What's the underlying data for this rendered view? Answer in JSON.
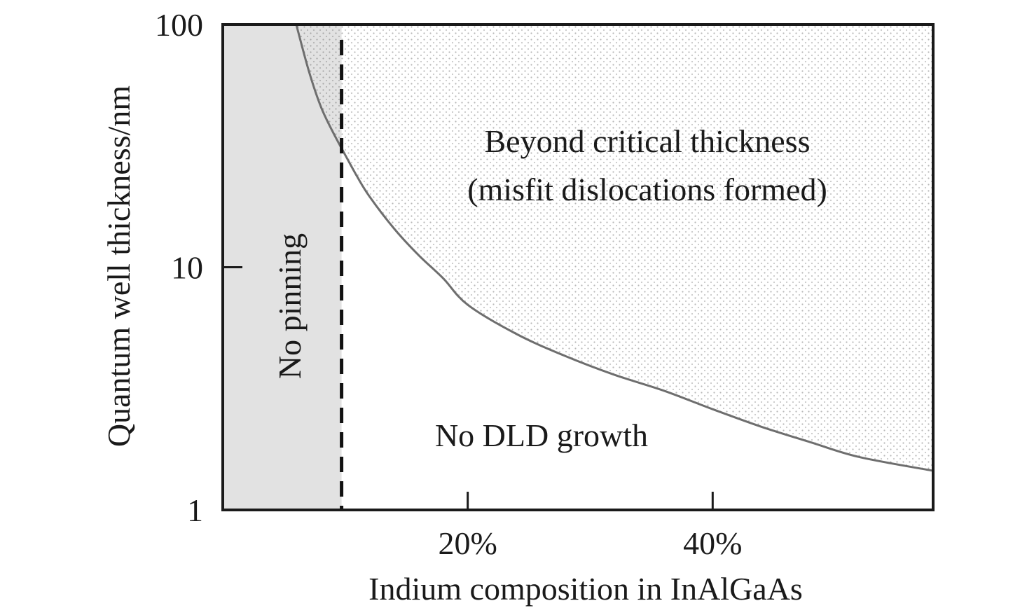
{
  "chart_data": {
    "type": "area",
    "title": "",
    "xlabel": "Indium composition in InAlGaAs",
    "ylabel": "Quantum well thickness/nm",
    "x_unit": "fraction",
    "xlim": [
      0,
      0.58
    ],
    "ylim": [
      1,
      100
    ],
    "y_scale": "log",
    "x_ticks": [
      {
        "value": 0.2,
        "label": "20%"
      },
      {
        "value": 0.4,
        "label": "40%"
      }
    ],
    "y_ticks": [
      {
        "value": 1,
        "label": "1"
      },
      {
        "value": 10,
        "label": "10"
      },
      {
        "value": 100,
        "label": "100"
      }
    ],
    "grid": false,
    "series": [
      {
        "x": [
          0.06,
          0.07,
          0.08,
          0.09,
          0.1,
          0.11,
          0.12,
          0.14,
          0.16,
          0.18,
          0.2,
          0.24,
          0.28,
          0.32,
          0.36,
          0.4,
          0.44,
          0.48,
          0.52,
          0.58
        ],
        "values": [
          100,
          65,
          46,
          36,
          29,
          23.5,
          19.5,
          14.4,
          11.2,
          9.0,
          7.0,
          5.3,
          4.3,
          3.6,
          3.1,
          2.6,
          2.2,
          1.9,
          1.65,
          1.45
        ]
      }
    ],
    "vertical_line": {
      "x": 0.097,
      "style": "dashed"
    },
    "regions": [
      {
        "label": "No pinning",
        "fill": "#e2e2e2"
      },
      {
        "label": "Beyond critical thickness",
        "label2": "(misfit dislocations formed)",
        "fill": "dotted"
      },
      {
        "label": "No DLD growth",
        "fill": "#ffffff"
      }
    ],
    "colors": {
      "axis": "#1a1a1a",
      "curve": "#6e6e6e",
      "shade": "#e2e2e2",
      "dots": "#b8b8b8"
    }
  }
}
